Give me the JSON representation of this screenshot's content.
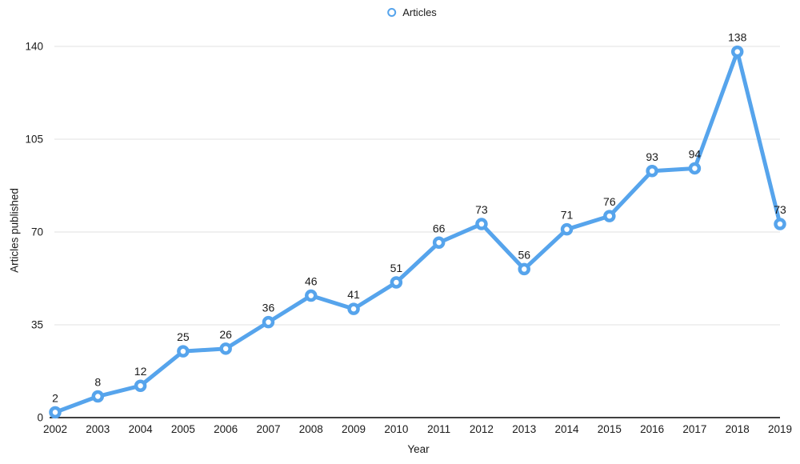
{
  "legend": {
    "label": "Articles"
  },
  "colors": {
    "line": "#56A4EC",
    "marker_fill": "#FFFFFF",
    "grid": "#ECECEC",
    "axis": "#000000",
    "text": "#1a1a1a"
  },
  "chart_data": {
    "type": "line",
    "title": "",
    "xlabel": "Year",
    "ylabel": "Articles published",
    "categories": [
      "2002",
      "2003",
      "2004",
      "2005",
      "2006",
      "2007",
      "2008",
      "2009",
      "2010",
      "2011",
      "2012",
      "2013",
      "2014",
      "2015",
      "2016",
      "2017",
      "2018",
      "2019"
    ],
    "series": [
      {
        "name": "Articles",
        "values": [
          2,
          8,
          12,
          25,
          26,
          36,
          46,
          41,
          51,
          66,
          73,
          56,
          71,
          76,
          93,
          94,
          138,
          73
        ]
      }
    ],
    "yticks": [
      0,
      35,
      70,
      105,
      140
    ],
    "ylim": [
      0,
      140
    ],
    "grid": "horizontal",
    "legend_position": "top-center",
    "data_labels": true
  }
}
